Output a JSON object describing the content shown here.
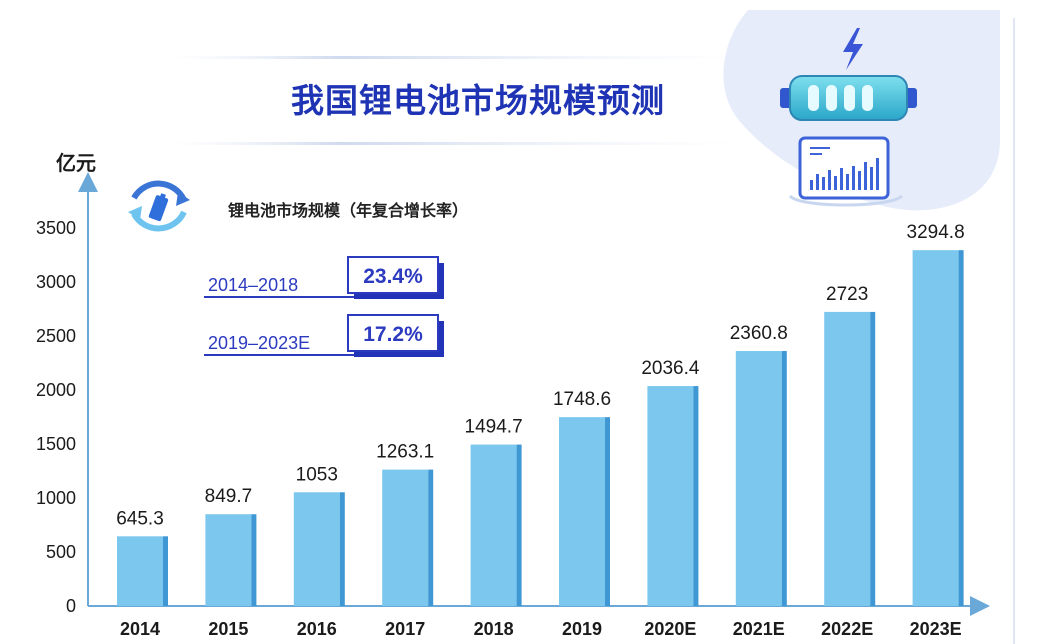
{
  "header": {
    "title": "我国锂电池市场规模预测"
  },
  "legend": {
    "label": "锂电池市场规模（年复合增长率）"
  },
  "cagr": [
    {
      "period": "2014–2018",
      "rate": "23.4%"
    },
    {
      "period": "2019–2023E",
      "rate": "17.2%"
    }
  ],
  "colors": {
    "bar": "#7cc7ee",
    "bar_shade": "#3f97d4",
    "title": "#1f34b4",
    "axis": "#6aa8d8"
  },
  "chart_data": {
    "type": "bar",
    "title": "我国锂电池市场规模预测",
    "ylabel": "亿元",
    "xlabel": "",
    "categories": [
      "2014",
      "2015",
      "2016",
      "2017",
      "2018",
      "2019",
      "2020E",
      "2021E",
      "2022E",
      "2023E"
    ],
    "values": [
      645.3,
      849.7,
      1053,
      1263.1,
      1494.7,
      1748.6,
      2036.4,
      2360.8,
      2723,
      3294.8
    ],
    "value_labels": [
      "645.3",
      "849.7",
      "1053",
      "1263.1",
      "1494.7",
      "1748.6",
      "2036.4",
      "2360.8",
      "2723",
      "3294.8"
    ],
    "yticks": [
      "0",
      "500",
      "1000",
      "1500",
      "2000",
      "2500",
      "3000",
      "3500"
    ],
    "ylim": [
      0,
      3500
    ],
    "grid": false
  }
}
